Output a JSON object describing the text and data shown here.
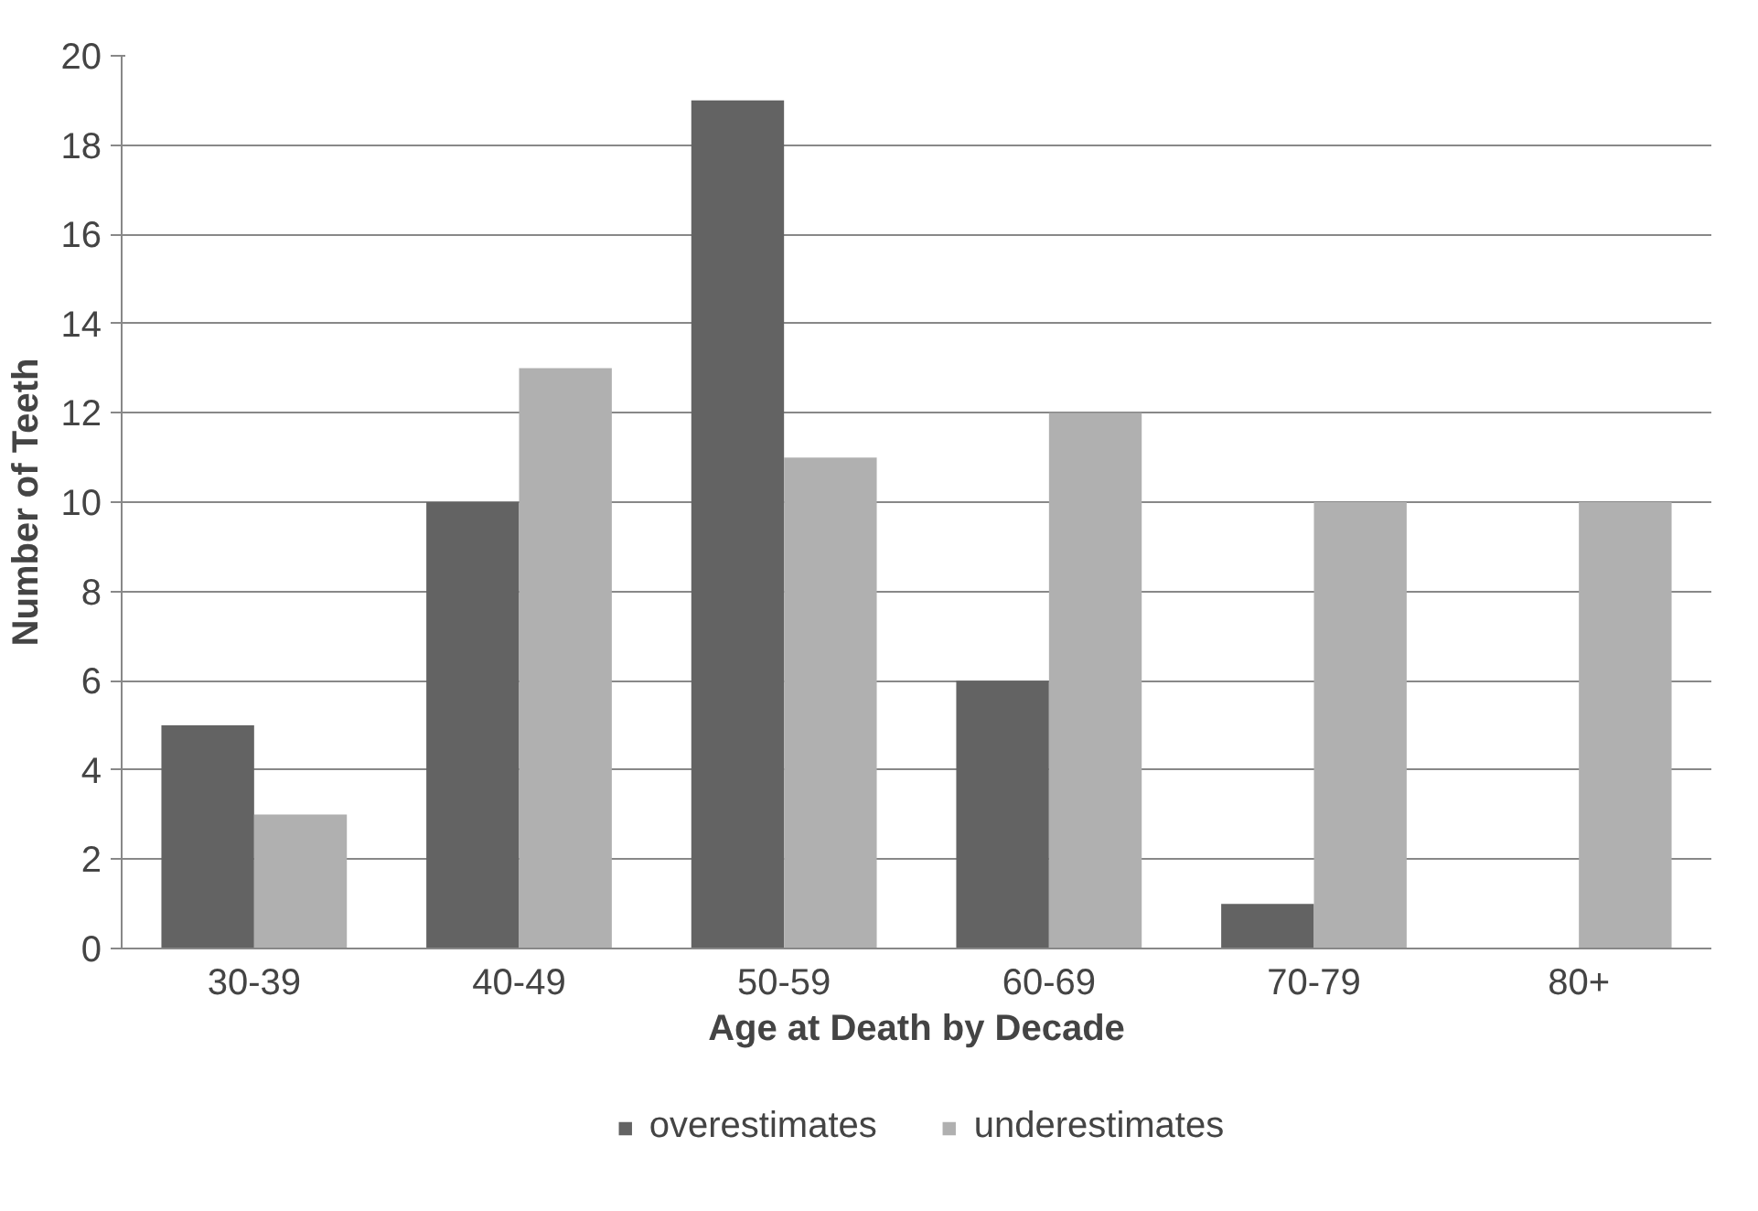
{
  "chart_data": {
    "type": "bar",
    "xlabel": "Age at Death by Decade",
    "ylabel": "Number of Teeth",
    "categories": [
      "30-39",
      "40-49",
      "50-59",
      "60-69",
      "70-79",
      "80+"
    ],
    "series": [
      {
        "name": "overestimates",
        "color": "#636363",
        "values": [
          5,
          10,
          19,
          6,
          1,
          0
        ]
      },
      {
        "name": "underestimates",
        "color": "#b0b0b0",
        "values": [
          3,
          13,
          11,
          12,
          10,
          10
        ]
      }
    ],
    "ylim": [
      0,
      20
    ],
    "yticks": [
      0,
      2,
      4,
      6,
      8,
      10,
      12,
      14,
      16,
      18,
      20
    ],
    "grid": "y",
    "legend": "bottom"
  }
}
